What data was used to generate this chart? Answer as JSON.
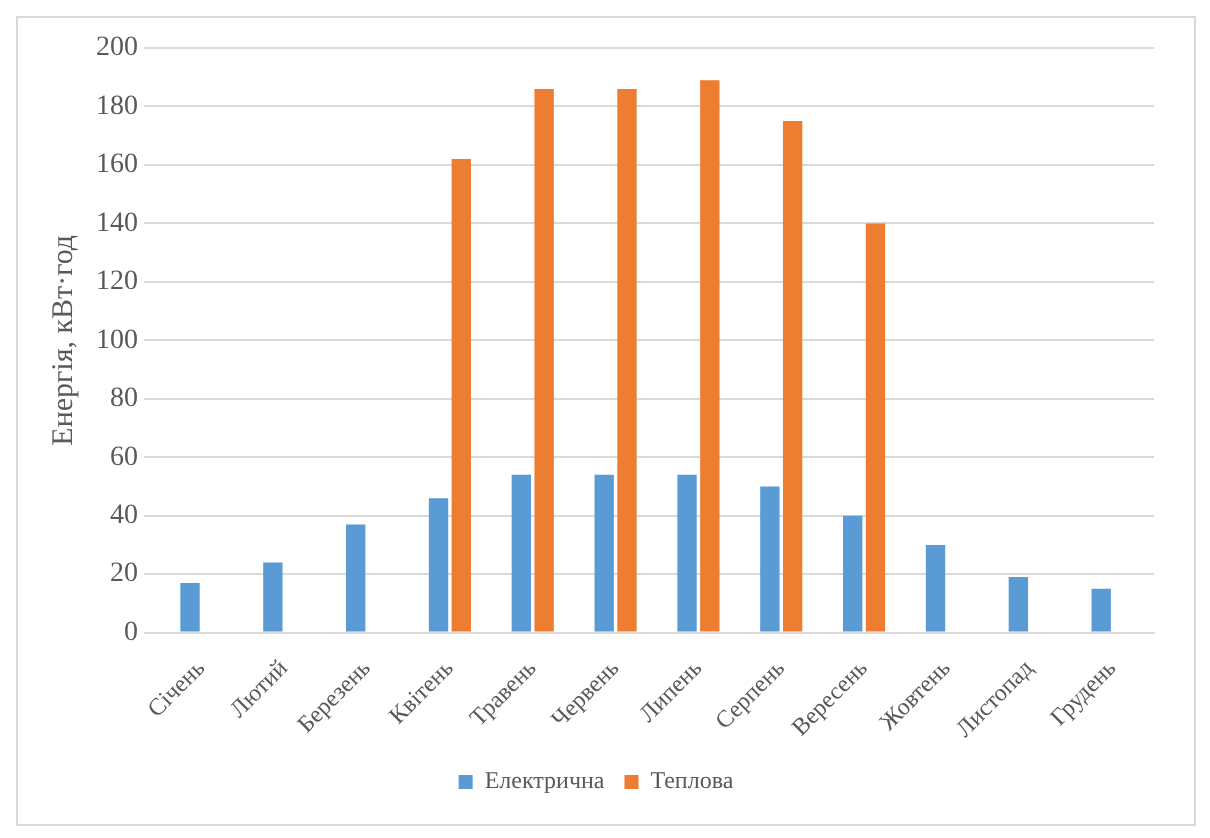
{
  "chart_data": {
    "type": "bar",
    "ylabel": "Енергія, кВт·год",
    "categories": [
      "Січень",
      "Лютий",
      "Березень",
      "Квітень",
      "Травень",
      "Червень",
      "Липень",
      "Серпень",
      "Вересень",
      "Жовтень",
      "Листопад",
      "Грудень"
    ],
    "series": [
      {
        "name": "Електрична",
        "color": "#5b9bd5",
        "values": [
          17,
          24,
          37,
          46,
          54,
          54,
          54,
          50,
          40,
          30,
          19,
          15
        ]
      },
      {
        "name": "Теплова",
        "color": "#ed7d31",
        "values": [
          null,
          null,
          null,
          162,
          186,
          186,
          189,
          175,
          140,
          null,
          null,
          null
        ]
      }
    ],
    "ylim": [
      0,
      200
    ],
    "yticks": [
      0,
      20,
      40,
      60,
      80,
      100,
      120,
      140,
      160,
      180,
      200
    ],
    "grid": "y",
    "legend": "bottom"
  }
}
